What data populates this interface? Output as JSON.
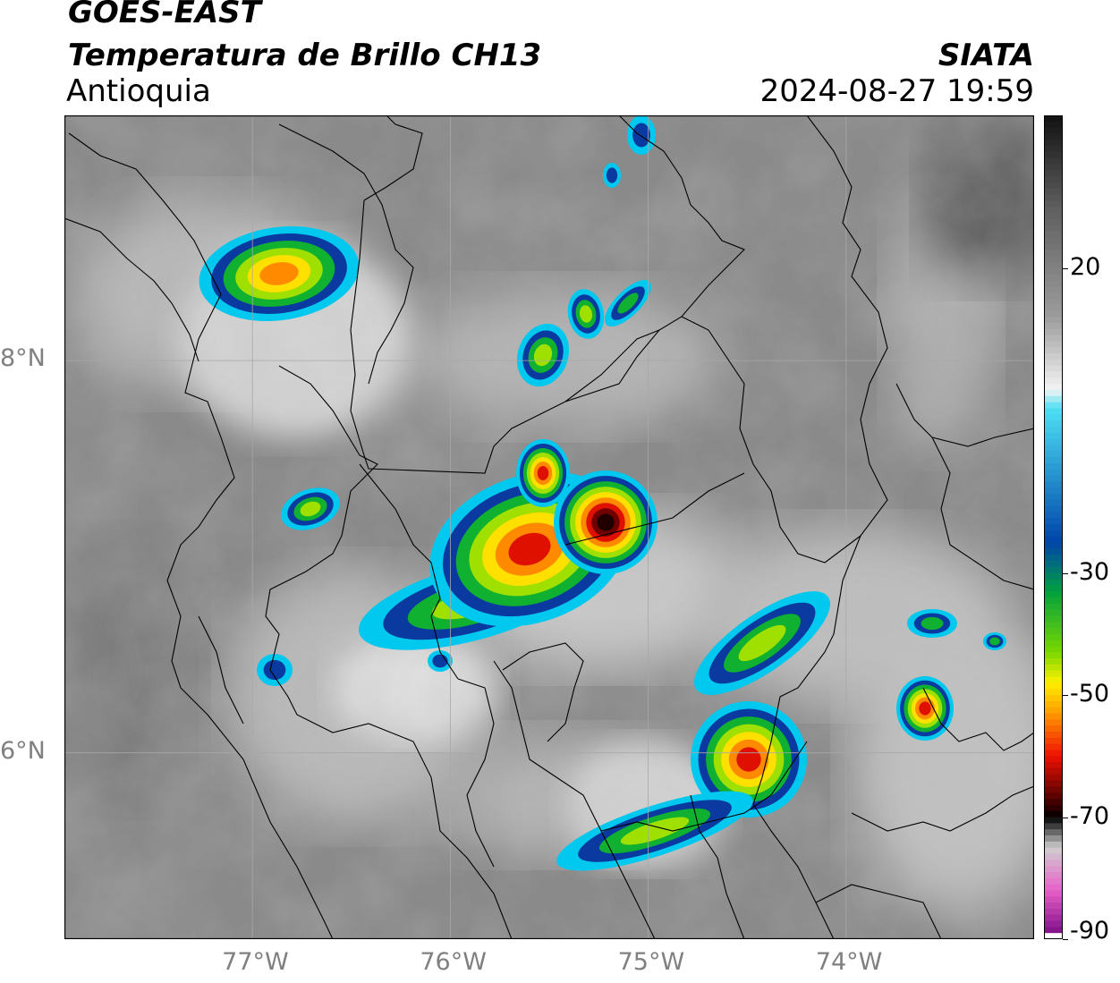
{
  "header": {
    "satellite": "GOES-EAST",
    "product": "Temperatura de Brillo CH13",
    "region": "Antioquia",
    "agency": "SIATA",
    "datetime": "2024-08-27 19:59"
  },
  "map": {
    "lon_range": [
      -77.95,
      -73.05
    ],
    "lat_range": [
      5.05,
      9.25
    ],
    "lon_ticks": [
      {
        "value": -77,
        "label": "77°W"
      },
      {
        "value": -76,
        "label": "76°W"
      },
      {
        "value": -75,
        "label": "75°W"
      },
      {
        "value": -74,
        "label": "74°W"
      }
    ],
    "lat_ticks": [
      {
        "value": 8,
        "label": "8°N"
      },
      {
        "value": 6,
        "label": "6°N"
      }
    ],
    "grid": true
  },
  "colorbar": {
    "range": [
      -90,
      45
    ],
    "ticks": [
      {
        "value": 20,
        "label": "20"
      },
      {
        "value": -30,
        "label": "-30"
      },
      {
        "value": -50,
        "label": "-50"
      },
      {
        "value": -70,
        "label": "-70"
      },
      {
        "value": -90,
        "label": "-90"
      }
    ],
    "stops": [
      {
        "value": 45,
        "color": "#111111"
      },
      {
        "value": 30,
        "color": "#5e5e5e"
      },
      {
        "value": 12,
        "color": "#9c9c9c"
      },
      {
        "value": 0,
        "color": "#f4f4f4"
      },
      {
        "value": -3,
        "color": "#4de0f4"
      },
      {
        "value": -25,
        "color": "#0044aa"
      },
      {
        "value": -33,
        "color": "#00a040"
      },
      {
        "value": -43,
        "color": "#7ad800"
      },
      {
        "value": -48,
        "color": "#fff000"
      },
      {
        "value": -53,
        "color": "#ff9a00"
      },
      {
        "value": -60,
        "color": "#ee1000"
      },
      {
        "value": -68,
        "color": "#3a0000"
      },
      {
        "value": -70,
        "color": "#000000"
      },
      {
        "value": -75,
        "color": "#cfcfcf"
      },
      {
        "value": -82,
        "color": "#e860c8"
      },
      {
        "value": -89,
        "color": "#801088"
      },
      {
        "value": -90,
        "color": "#ffffff"
      }
    ]
  },
  "storm_colors": {
    "edge": "#00c8ee",
    "blue": "#0a3aa0",
    "green": "#10b030",
    "lime": "#a0e000",
    "yellow": "#ffe000",
    "orange": "#ff8a00",
    "red": "#e01000",
    "darkred": "#700000",
    "black": "#200000"
  }
}
